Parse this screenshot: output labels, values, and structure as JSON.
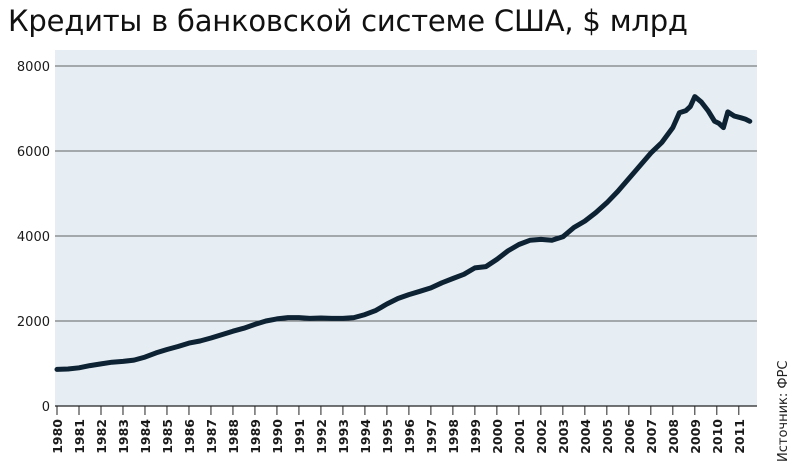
{
  "title": "Кредиты в банковской системе США, $ млрд",
  "source": "Источник: ФРС",
  "colors": {
    "background": "#e6eef3",
    "line": "#0d2233",
    "grid": "#333333"
  },
  "chart_data": {
    "type": "line",
    "title": "Кредиты в банковской системе США, $ млрд",
    "xlabel": "",
    "ylabel": "",
    "ylim": [
      0,
      8000
    ],
    "xlim": [
      1980,
      2011.6
    ],
    "yticks": [
      0,
      2000,
      4000,
      6000,
      8000
    ],
    "xticks": [
      "1980",
      "1981",
      "1982",
      "1983",
      "1984",
      "1985",
      "1986",
      "1987",
      "1988",
      "1989",
      "1990",
      "1991",
      "1992",
      "1993",
      "1994",
      "1995",
      "1996",
      "1997",
      "1998",
      "1999",
      "2000",
      "2001",
      "2002",
      "2003",
      "2004",
      "2005",
      "2006",
      "2007",
      "2008",
      "2009",
      "2010",
      "2011"
    ],
    "grid": true,
    "series": [
      {
        "x": [
          1980.0,
          1980.5,
          1981.0,
          1981.5,
          1982.0,
          1982.5,
          1983.0,
          1983.5,
          1984.0,
          1984.5,
          1985.0,
          1985.5,
          1986.0,
          1986.5,
          1987.0,
          1987.5,
          1988.0,
          1988.5,
          1989.0,
          1989.5,
          1990.0,
          1990.5,
          1991.0,
          1991.5,
          1992.0,
          1992.5,
          1993.0,
          1993.5,
          1994.0,
          1994.5,
          1995.0,
          1995.5,
          1996.0,
          1996.5,
          1997.0,
          1997.5,
          1998.0,
          1998.5,
          1999.0,
          1999.5,
          2000.0,
          2000.5,
          2001.0,
          2001.5,
          2002.0,
          2002.5,
          2003.0,
          2003.5,
          2004.0,
          2004.5,
          2005.0,
          2005.5,
          2006.0,
          2006.5,
          2007.0,
          2007.5,
          2008.0,
          2008.3,
          2008.6,
          2008.8,
          2009.0,
          2009.3,
          2009.6,
          2009.9,
          2010.1,
          2010.3,
          2010.5,
          2010.8,
          2011.1,
          2011.3,
          2011.5
        ],
        "values": [
          860,
          870,
          900,
          950,
          990,
          1030,
          1050,
          1080,
          1150,
          1250,
          1330,
          1400,
          1480,
          1530,
          1600,
          1680,
          1760,
          1830,
          1920,
          2000,
          2050,
          2080,
          2080,
          2060,
          2070,
          2060,
          2060,
          2080,
          2150,
          2250,
          2400,
          2530,
          2620,
          2700,
          2780,
          2900,
          3000,
          3100,
          3250,
          3280,
          3450,
          3650,
          3800,
          3900,
          3920,
          3900,
          3980,
          4200,
          4350,
          4550,
          4780,
          5050,
          5350,
          5650,
          5950,
          6200,
          6550,
          6900,
          6950,
          7050,
          7280,
          7150,
          6950,
          6700,
          6650,
          6550,
          6920,
          6820,
          6780,
          6750,
          6700
        ]
      }
    ]
  }
}
